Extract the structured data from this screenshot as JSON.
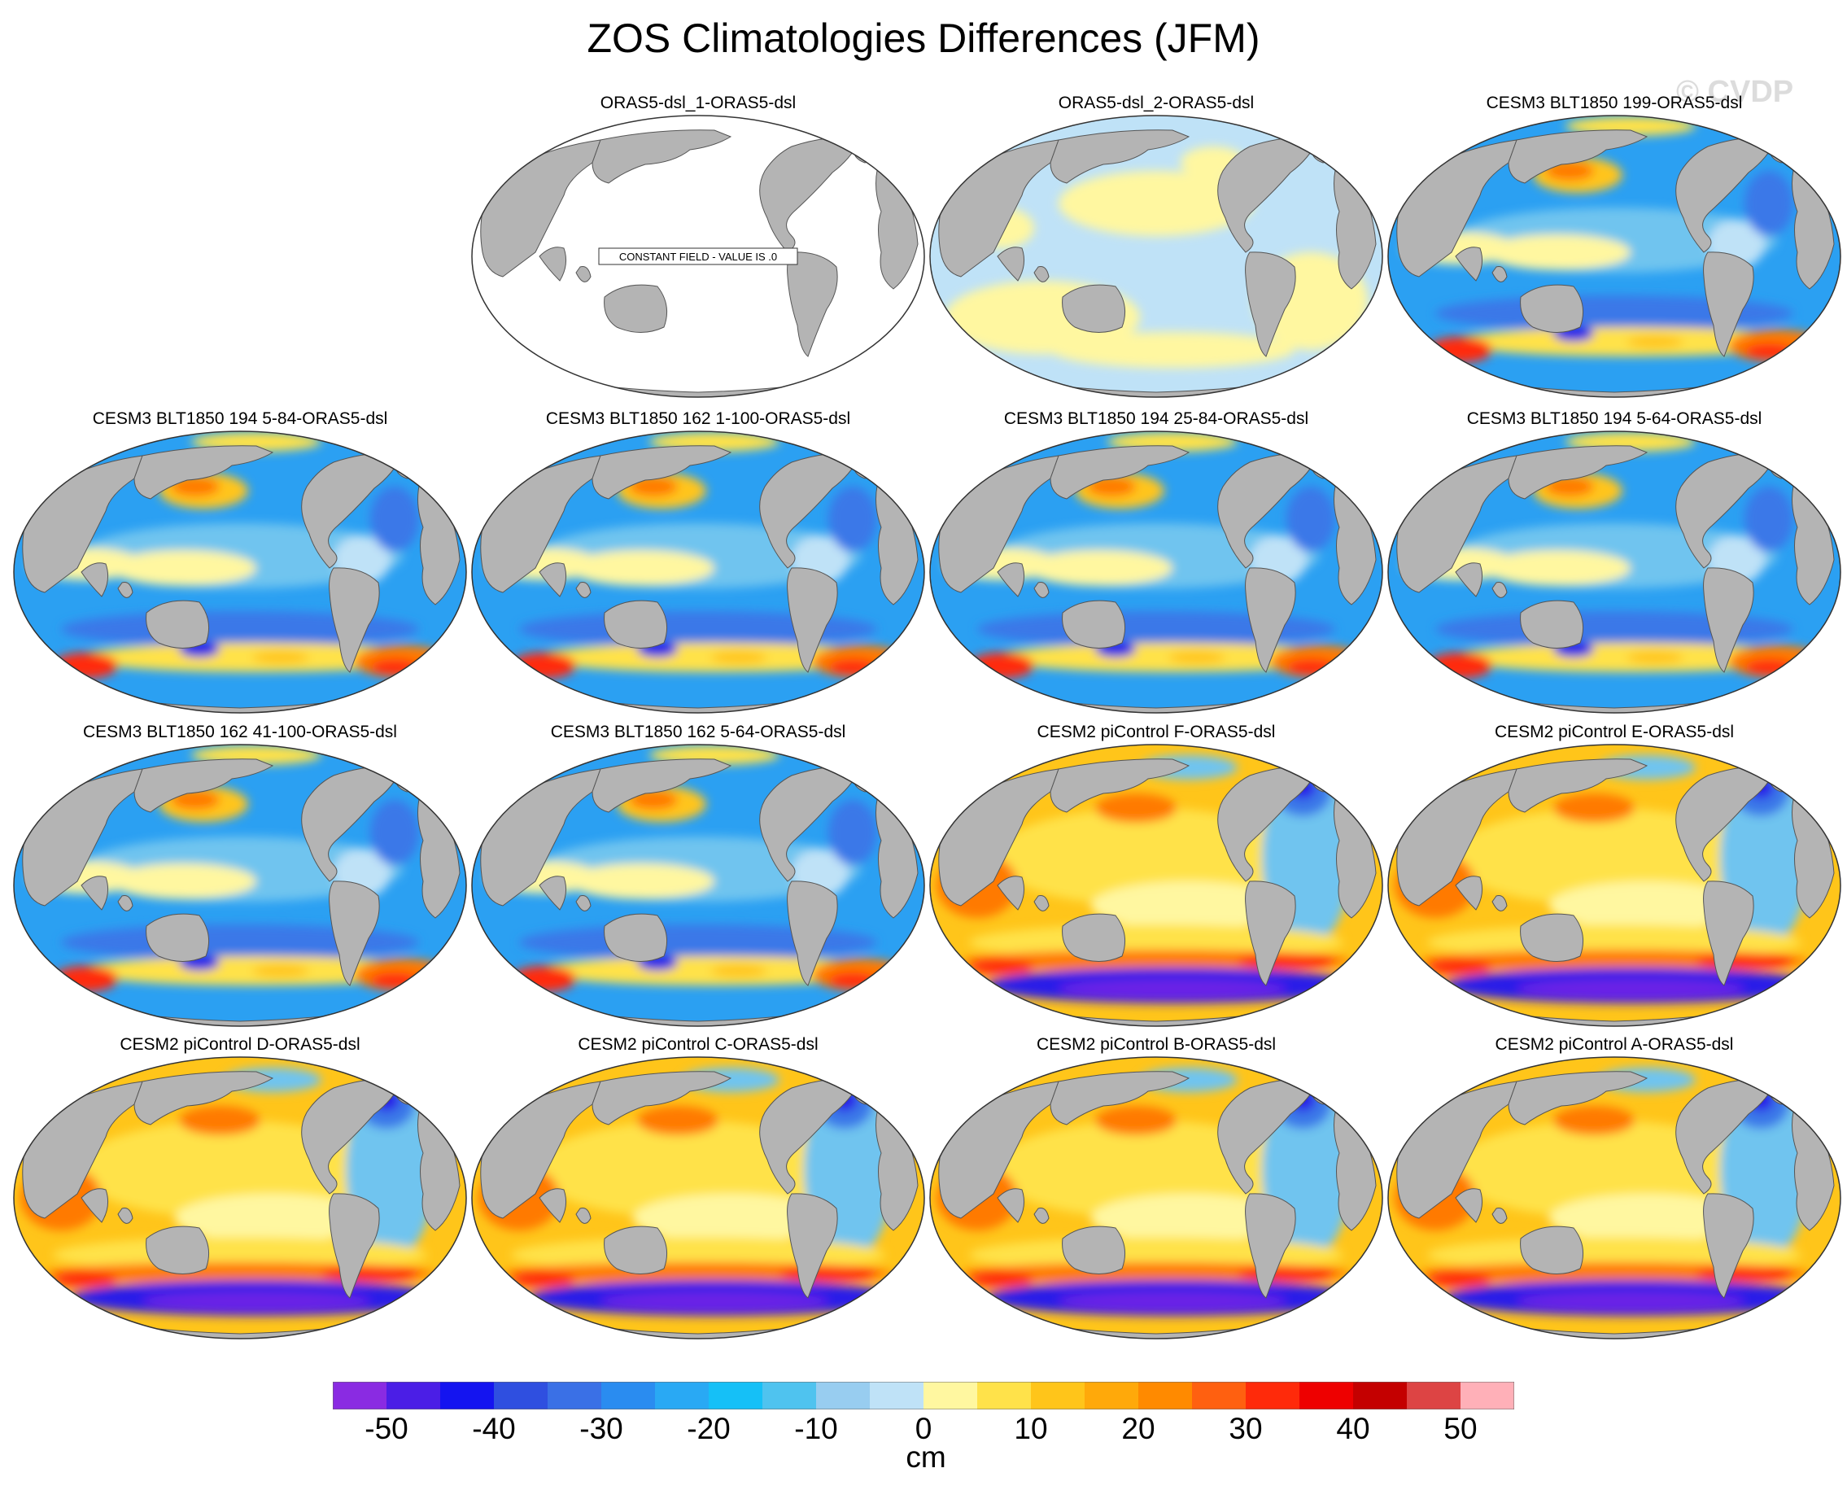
{
  "title": "ZOS Climatologies Differences (JFM)",
  "watermark": "© CVDP",
  "constant_field_note": "CONSTANT FIELD - VALUE IS .0",
  "panels": [
    {
      "label": "ORAS5-dsl_1-ORAS5-dsl",
      "pattern": "constant"
    },
    {
      "label": "ORAS5-dsl_2-ORAS5-dsl",
      "pattern": "near-zero"
    },
    {
      "label": "CESM3 BLT1850 199-ORAS5-dsl",
      "pattern": "cesm3"
    },
    {
      "label": "CESM3 BLT1850 194 5-84-ORAS5-dsl",
      "pattern": "cesm3"
    },
    {
      "label": "CESM3 BLT1850 162 1-100-ORAS5-dsl",
      "pattern": "cesm3"
    },
    {
      "label": "CESM3 BLT1850 194 25-84-ORAS5-dsl",
      "pattern": "cesm3"
    },
    {
      "label": "CESM3 BLT1850 194 5-64-ORAS5-dsl",
      "pattern": "cesm3"
    },
    {
      "label": "CESM3 BLT1850 162 41-100-ORAS5-dsl",
      "pattern": "cesm3"
    },
    {
      "label": "CESM3 BLT1850 162 5-64-ORAS5-dsl",
      "pattern": "cesm3"
    },
    {
      "label": "CESM2 piControl F-ORAS5-dsl",
      "pattern": "cesm2"
    },
    {
      "label": "CESM2 piControl E-ORAS5-dsl",
      "pattern": "cesm2"
    },
    {
      "label": "CESM2 piControl D-ORAS5-dsl",
      "pattern": "cesm2"
    },
    {
      "label": "CESM2 piControl C-ORAS5-dsl",
      "pattern": "cesm2"
    },
    {
      "label": "CESM2 piControl B-ORAS5-dsl",
      "pattern": "cesm2"
    },
    {
      "label": "CESM2 piControl A-ORAS5-dsl",
      "pattern": "cesm2"
    }
  ],
  "colorbar": {
    "units": "cm",
    "labels": [
      "-50",
      "-40",
      "-30",
      "-20",
      "-10",
      "0",
      "10",
      "20",
      "30",
      "40",
      "50"
    ],
    "colors": [
      "#8a2be2",
      "#4b1ee6",
      "#1414f0",
      "#2f4fe0",
      "#3a70e6",
      "#2a8cf0",
      "#29a9f4",
      "#15c0f7",
      "#4fc3ef",
      "#98cdf0",
      "#bfe2f7",
      "#fff7a0",
      "#ffe24a",
      "#ffc51a",
      "#ffa90a",
      "#ff8a00",
      "#ff6010",
      "#ff2a0a",
      "#ee0000",
      "#c40000",
      "#dd4444",
      "#ffb0b8"
    ]
  }
}
